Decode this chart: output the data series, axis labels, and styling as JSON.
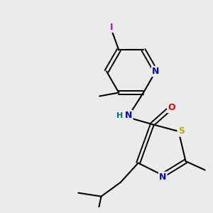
{
  "bg_color": "#ebebeb",
  "atom_colors": {
    "C": "#000000",
    "N": "#0000ee",
    "O": "#ee0000",
    "S": "#bbaa00",
    "I": "#cc00cc",
    "H": "#007777"
  },
  "bond_color": "#000000",
  "figsize": [
    3.0,
    3.0
  ],
  "dpi": 100
}
